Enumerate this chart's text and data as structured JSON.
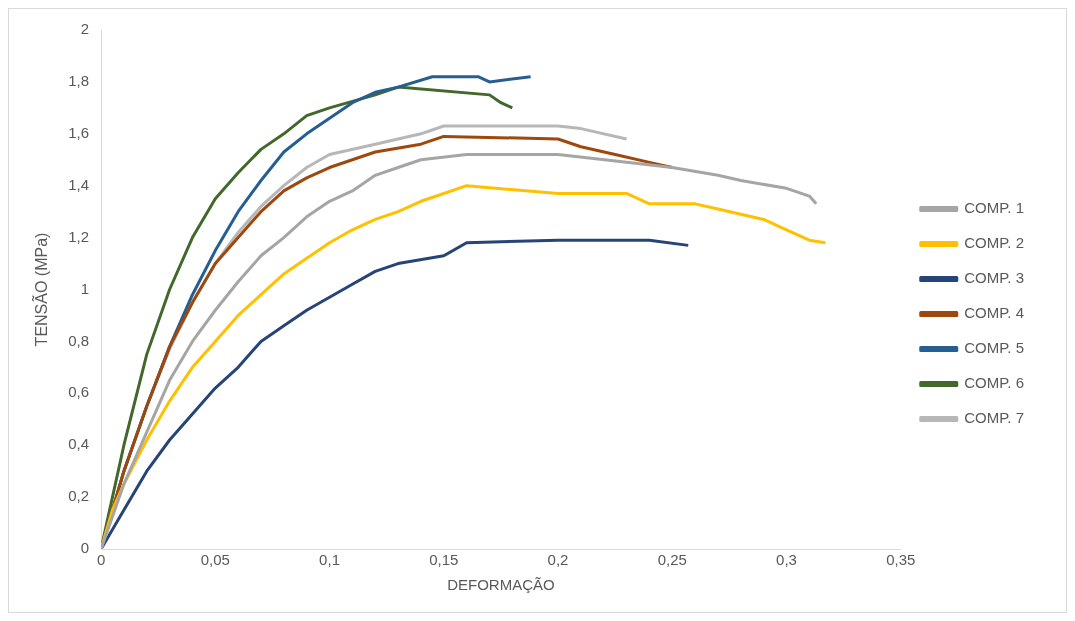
{
  "chart_data": {
    "type": "line",
    "xlabel": "DEFORMAÇÃO",
    "ylabel": "TENSÃO (MPa)",
    "xlim": [
      0,
      0.35
    ],
    "ylim": [
      0,
      2
    ],
    "xticks": [
      0,
      {
        "value": 0.05,
        "label": "0,05"
      },
      {
        "value": 0.1,
        "label": "0,1"
      },
      {
        "value": 0.15,
        "label": "0,15"
      },
      {
        "value": 0.2,
        "label": "0,2"
      },
      {
        "value": 0.25,
        "label": "0,25"
      },
      {
        "value": 0.3,
        "label": "0,3"
      },
      {
        "value": 0.35,
        "label": "0,35"
      }
    ],
    "yticks": [
      0,
      {
        "value": 0.2,
        "label": "0,2"
      },
      {
        "value": 0.4,
        "label": "0,4"
      },
      {
        "value": 0.6,
        "label": "0,6"
      },
      {
        "value": 0.8,
        "label": "0,8"
      },
      1,
      {
        "value": 1.2,
        "label": "1,2"
      },
      {
        "value": 1.4,
        "label": "1,4"
      },
      {
        "value": 1.6,
        "label": "1,6"
      },
      {
        "value": 1.8,
        "label": "1,8"
      },
      2
    ],
    "grid": false,
    "legend": "right",
    "marker": "none",
    "line_style": "solid",
    "series": [
      {
        "name": "COMP. 1",
        "color": "#a5a5a5",
        "x": [
          0,
          0.01,
          0.02,
          0.03,
          0.04,
          0.05,
          0.06,
          0.07,
          0.08,
          0.09,
          0.1,
          0.11,
          0.12,
          0.13,
          0.14,
          0.16,
          0.2,
          0.23,
          0.25,
          0.27,
          0.28,
          0.3,
          0.31,
          0.313
        ],
        "values": [
          0,
          0.25,
          0.45,
          0.65,
          0.8,
          0.92,
          1.03,
          1.13,
          1.2,
          1.28,
          1.34,
          1.38,
          1.44,
          1.47,
          1.5,
          1.52,
          1.52,
          1.49,
          1.47,
          1.44,
          1.42,
          1.39,
          1.36,
          1.33
        ]
      },
      {
        "name": "COMP. 2",
        "color": "#ffc000",
        "x": [
          0,
          0.005,
          0.01,
          0.02,
          0.03,
          0.04,
          0.05,
          0.06,
          0.07,
          0.08,
          0.09,
          0.1,
          0.11,
          0.12,
          0.13,
          0.14,
          0.15,
          0.16,
          0.2,
          0.23,
          0.24,
          0.26,
          0.27,
          0.29,
          0.3,
          0.31,
          0.317
        ],
        "values": [
          0,
          0.15,
          0.25,
          0.42,
          0.57,
          0.7,
          0.8,
          0.9,
          0.98,
          1.06,
          1.12,
          1.18,
          1.23,
          1.27,
          1.3,
          1.34,
          1.37,
          1.4,
          1.37,
          1.37,
          1.33,
          1.33,
          1.31,
          1.27,
          1.23,
          1.19,
          1.18
        ]
      },
      {
        "name": "COMP. 3",
        "color": "#264478",
        "x": [
          0,
          0.01,
          0.02,
          0.03,
          0.04,
          0.05,
          0.06,
          0.07,
          0.08,
          0.09,
          0.1,
          0.11,
          0.12,
          0.13,
          0.15,
          0.16,
          0.2,
          0.24,
          0.257
        ],
        "values": [
          0,
          0.15,
          0.3,
          0.42,
          0.52,
          0.62,
          0.7,
          0.8,
          0.86,
          0.92,
          0.97,
          1.02,
          1.07,
          1.1,
          1.13,
          1.18,
          1.19,
          1.19,
          1.17
        ]
      },
      {
        "name": "COMP. 4",
        "color": "#9e480e",
        "x": [
          0,
          0.01,
          0.02,
          0.03,
          0.04,
          0.05,
          0.06,
          0.07,
          0.08,
          0.09,
          0.1,
          0.11,
          0.12,
          0.14,
          0.15,
          0.2,
          0.21,
          0.225,
          0.24,
          0.25
        ],
        "values": [
          0,
          0.3,
          0.55,
          0.78,
          0.95,
          1.1,
          1.2,
          1.3,
          1.38,
          1.43,
          1.47,
          1.5,
          1.53,
          1.56,
          1.59,
          1.58,
          1.55,
          1.52,
          1.49,
          1.47
        ]
      },
      {
        "name": "COMP. 5",
        "color": "#255e91",
        "x": [
          0,
          0.01,
          0.02,
          0.03,
          0.04,
          0.05,
          0.06,
          0.07,
          0.08,
          0.09,
          0.1,
          0.11,
          0.12,
          0.13,
          0.145,
          0.165,
          0.17,
          0.188
        ],
        "values": [
          0,
          0.3,
          0.55,
          0.78,
          0.98,
          1.15,
          1.3,
          1.42,
          1.53,
          1.6,
          1.66,
          1.72,
          1.76,
          1.78,
          1.82,
          1.82,
          1.8,
          1.82
        ]
      },
      {
        "name": "COMP. 6",
        "color": "#43682b",
        "x": [
          0,
          0.01,
          0.02,
          0.03,
          0.04,
          0.05,
          0.06,
          0.07,
          0.08,
          0.09,
          0.1,
          0.12,
          0.13,
          0.17,
          0.175,
          0.18
        ],
        "values": [
          0,
          0.4,
          0.75,
          1.0,
          1.2,
          1.35,
          1.45,
          1.54,
          1.6,
          1.67,
          1.7,
          1.75,
          1.78,
          1.75,
          1.72,
          1.7
        ]
      },
      {
        "name": "COMP. 7",
        "color": "#b7b7b7",
        "x": [
          0,
          0.01,
          0.02,
          0.03,
          0.04,
          0.05,
          0.06,
          0.07,
          0.08,
          0.09,
          0.1,
          0.12,
          0.14,
          0.15,
          0.2,
          0.21,
          0.23
        ],
        "values": [
          0,
          0.3,
          0.55,
          0.77,
          0.95,
          1.1,
          1.22,
          1.32,
          1.4,
          1.47,
          1.52,
          1.56,
          1.6,
          1.63,
          1.63,
          1.62,
          1.58
        ]
      }
    ]
  }
}
